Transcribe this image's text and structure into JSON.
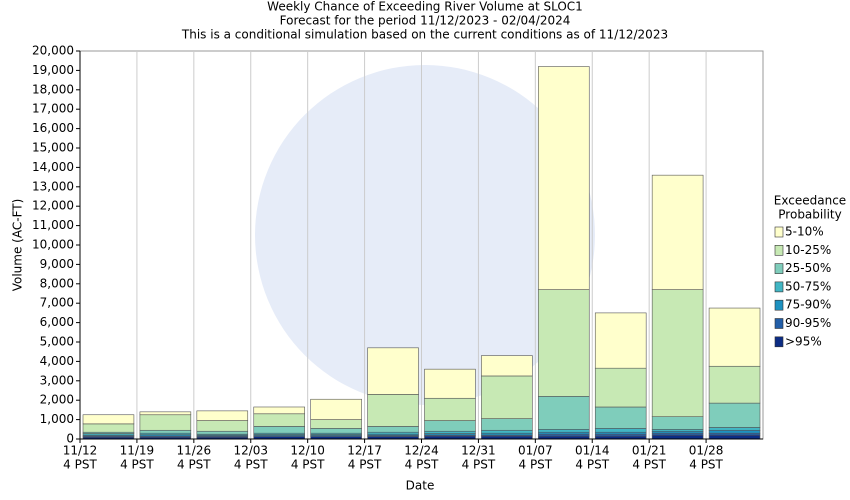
{
  "chart_data": {
    "type": "stacked_bar",
    "title": [
      "Weekly Chance of Exceeding River Volume at SLOC1",
      "Forecast for the period 11/12/2023 - 02/04/2024",
      "This is a conditional simulation based on the current conditions as of 11/12/2023"
    ],
    "x_label": "Date",
    "y_label": "Volume (AC-FT)",
    "legend_title": [
      "Exceedance",
      "Probability"
    ],
    "categories": [
      [
        "11/12",
        "4 PST"
      ],
      [
        "11/19",
        "4 PST"
      ],
      [
        "11/26",
        "4 PST"
      ],
      [
        "12/03",
        "4 PST"
      ],
      [
        "12/10",
        "4 PST"
      ],
      [
        "12/17",
        "4 PST"
      ],
      [
        "12/24",
        "4 PST"
      ],
      [
        "12/31",
        "4 PST"
      ],
      [
        "01/07",
        "4 PST"
      ],
      [
        "01/14",
        "4 PST"
      ],
      [
        "01/21",
        "4 PST"
      ],
      [
        "01/28",
        "4 PST"
      ]
    ],
    "series": [
      {
        "name": ">95%",
        "color": "#0c2c84",
        "values": [
          100,
          100,
          100,
          120,
          120,
          130,
          150,
          150,
          150,
          150,
          200,
          200
        ]
      },
      {
        "name": "90-95%",
        "color": "#225ea8",
        "values": [
          50,
          50,
          50,
          50,
          50,
          50,
          50,
          50,
          100,
          100,
          100,
          100
        ]
      },
      {
        "name": "75-90%",
        "color": "#1d91c0",
        "values": [
          50,
          70,
          50,
          60,
          60,
          70,
          80,
          100,
          100,
          100,
          100,
          150
        ]
      },
      {
        "name": "50-75%",
        "color": "#41b6c4",
        "values": [
          80,
          80,
          50,
          70,
          70,
          100,
          120,
          150,
          150,
          200,
          100,
          150
        ]
      },
      {
        "name": "25-50%",
        "color": "#7fcdbb",
        "values": [
          70,
          150,
          150,
          350,
          250,
          300,
          550,
          600,
          1700,
          1100,
          650,
          1250
        ]
      },
      {
        "name": "10-25%",
        "color": "#c7e9b4",
        "values": [
          430,
          800,
          550,
          650,
          450,
          1650,
          1150,
          2200,
          5500,
          2000,
          6550,
          1900
        ]
      },
      {
        "name": "5-10%",
        "color": "#ffffcc",
        "values": [
          470,
          150,
          500,
          350,
          1050,
          2400,
          1500,
          1050,
          11500,
          2850,
          5900,
          3000
        ]
      }
    ],
    "ylim": [
      0,
      20000
    ],
    "yticks": [
      0,
      {
        "value": 1000,
        "label": "1,000"
      },
      {
        "value": 2000,
        "label": "2,000"
      },
      {
        "value": 3000,
        "label": "3,000"
      },
      {
        "value": 4000,
        "label": "4,000"
      },
      {
        "value": 5000,
        "label": "5,000"
      },
      {
        "value": 6000,
        "label": "6,000"
      },
      {
        "value": 7000,
        "label": "7,000"
      },
      {
        "value": 8000,
        "label": "8,000"
      },
      {
        "value": 9000,
        "label": "9,000"
      },
      {
        "value": 10000,
        "label": "10,000"
      },
      {
        "value": 11000,
        "label": "11,000"
      },
      {
        "value": 12000,
        "label": "12,000"
      },
      {
        "value": 13000,
        "label": "13,000"
      },
      {
        "value": 14000,
        "label": "14,000"
      },
      {
        "value": 15000,
        "label": "15,000"
      },
      {
        "value": 16000,
        "label": "16,000"
      },
      {
        "value": 17000,
        "label": "17,000"
      },
      {
        "value": 18000,
        "label": "18,000"
      },
      {
        "value": 19000,
        "label": "19,000"
      },
      {
        "value": 20000,
        "label": "20,000"
      }
    ]
  }
}
